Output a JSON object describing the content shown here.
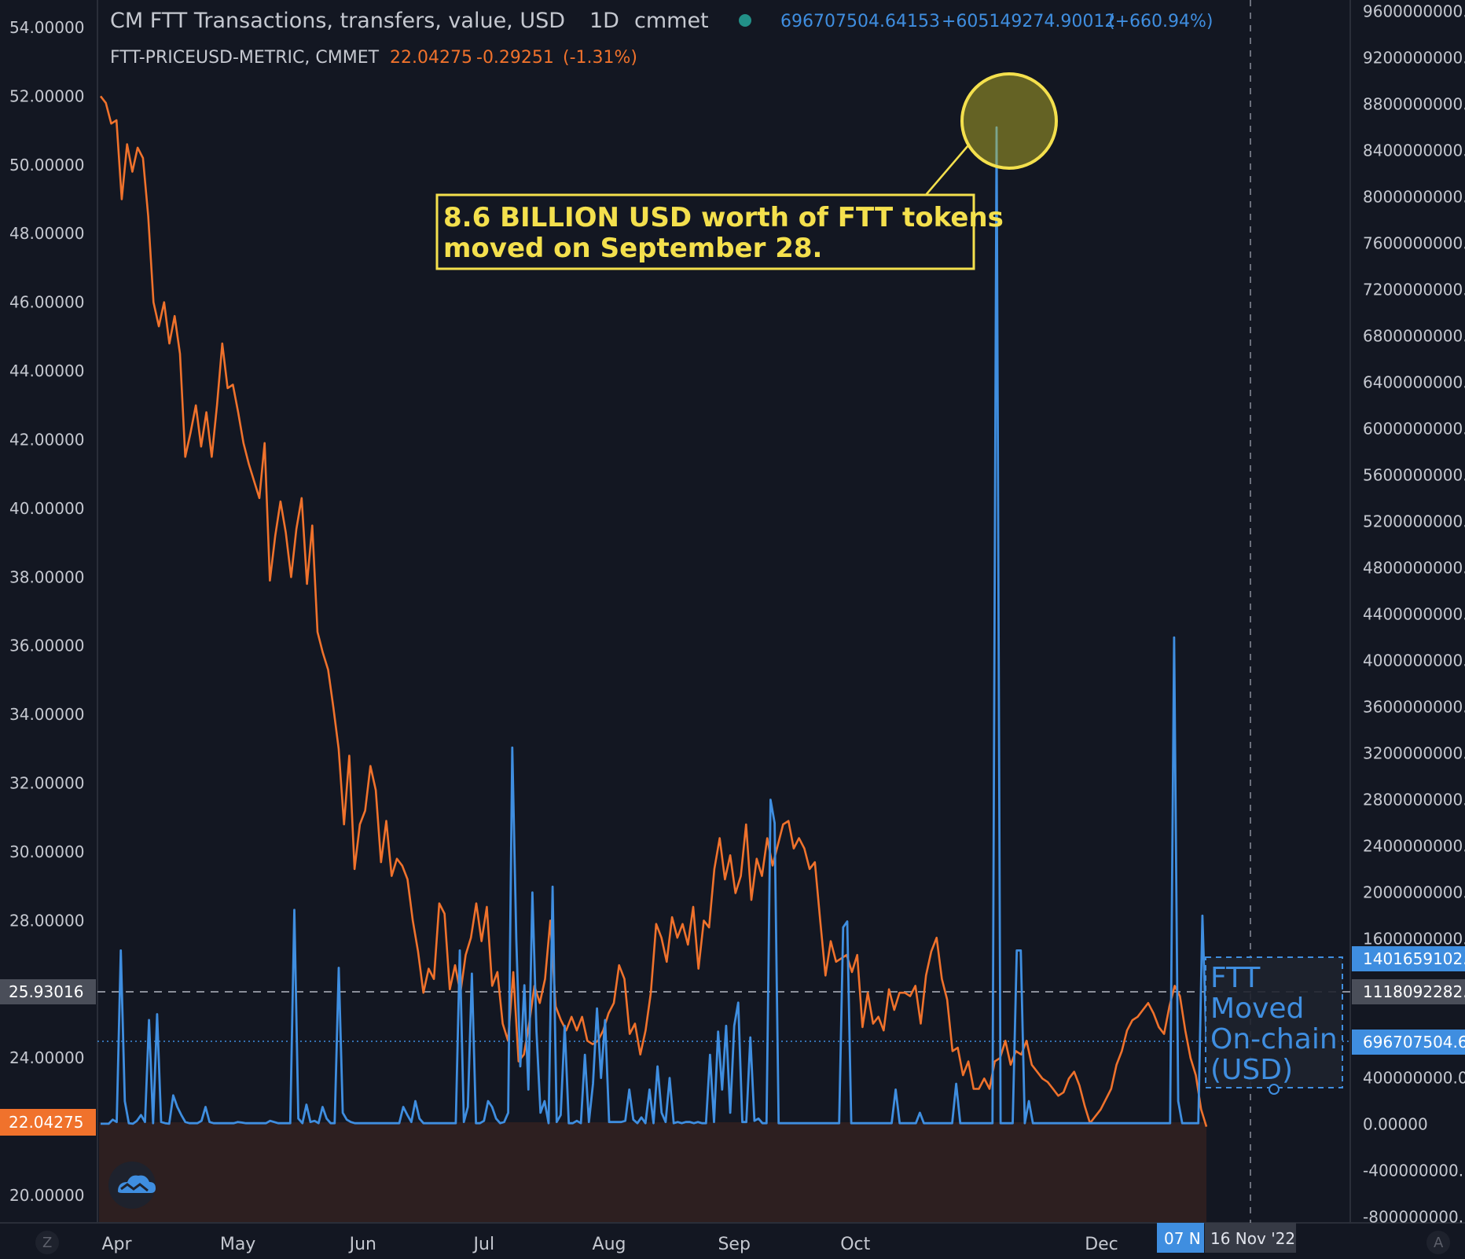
{
  "header": {
    "series1_title": "CM FTT Transactions, transfers, value, USD",
    "series1_interval": "1D",
    "series1_source": "cmmet",
    "series1_last": "696707504.64153",
    "series1_change": "+605149274.90012",
    "series1_change_pct": "(+660.94%)",
    "series2_title": "FTT-PRICEUSD-METRIC, CMMET",
    "series2_last": "22.04275",
    "series2_change": "-0.29251",
    "series2_change_pct": "(-1.31%)"
  },
  "annotation": {
    "line1": "8.6 BILLION USD worth of FTT tokens",
    "line2": "moved on September 28."
  },
  "box_label": [
    "FTT",
    "Moved",
    "On-chain",
    "(USD)"
  ],
  "price_tags": {
    "left_dashed": "25.93016",
    "left_last": "22.04275",
    "right_1": "1401659102.",
    "right_2": "1118092282.",
    "right_3": "696707504.6"
  },
  "crosshair_labels": {
    "x_highlight": "07 N",
    "x_date": "16 Nov '22"
  },
  "corner_labels": {
    "left": "Z",
    "right": "A"
  },
  "colors": {
    "background": "#131722",
    "transfers": "#3f8ee0",
    "price": "#f0722c",
    "annotation": "#f4e04d"
  },
  "chart_data": {
    "type": "line",
    "x_ticks": [
      "Apr",
      "May",
      "Jun",
      "Jul",
      "Aug",
      "Sep",
      "Oct",
      "Dec"
    ],
    "y_left_ticks": [
      "54.00000",
      "52.00000",
      "50.00000",
      "48.00000",
      "46.00000",
      "44.00000",
      "42.00000",
      "40.00000",
      "38.00000",
      "36.00000",
      "34.00000",
      "32.00000",
      "30.00000",
      "28.00000",
      "24.00000",
      "20.00000"
    ],
    "y_left_range": [
      19.2,
      54.8
    ],
    "y_right_ticks": [
      "9600000000.",
      "9200000000.",
      "8800000000.",
      "8400000000.",
      "8000000000.",
      "7600000000.",
      "7200000000.",
      "6800000000.",
      "6400000000.",
      "6000000000.",
      "5600000000.",
      "5200000000.",
      "4800000000.",
      "4400000000.",
      "4000000000.",
      "3600000000.",
      "3200000000.",
      "2800000000.",
      "2400000000.",
      "2000000000.",
      "1600000000.",
      "400000000.0",
      "0.00000",
      "-400000000.",
      "-800000000."
    ],
    "y_right_range": [
      -850000000,
      9700000000
    ],
    "grid": false,
    "series": [
      {
        "name": "CM FTT Transactions, transfers, value, USD",
        "axis": "right",
        "values": [
          5000000,
          5000000,
          5000000,
          40000000,
          20000000,
          1500000000,
          200000000,
          10000000,
          5000000,
          30000000,
          80000000,
          20000000,
          900000000,
          10000000,
          950000000,
          20000000,
          10000000,
          5000000,
          250000000,
          150000000,
          80000000,
          20000000,
          10000000,
          10000000,
          10000000,
          30000000,
          150000000,
          20000000,
          10000000,
          10000000,
          10000000,
          10000000,
          10000000,
          10000000,
          20000000,
          15000000,
          10000000,
          10000000,
          10000000,
          10000000,
          10000000,
          10000000,
          30000000,
          20000000,
          10000000,
          10000000,
          10000000,
          10000000,
          1850000000,
          50000000,
          10000000,
          170000000,
          20000000,
          30000000,
          10000000,
          150000000,
          50000000,
          10000000,
          10000000,
          1350000000,
          100000000,
          40000000,
          20000000,
          10000000,
          10000000,
          10000000,
          10000000,
          10000000,
          10000000,
          10000000,
          10000000,
          10000000,
          10000000,
          10000000,
          10000000,
          150000000,
          80000000,
          20000000,
          200000000,
          50000000,
          10000000,
          10000000,
          10000000,
          10000000,
          10000000,
          10000000,
          10000000,
          10000000,
          10000000,
          1500000000,
          20000000,
          150000000,
          1300000000,
          10000000,
          10000000,
          30000000,
          200000000,
          150000000,
          50000000,
          10000000,
          20000000,
          100000000,
          3250000000,
          1600000000,
          500000000,
          1200000000,
          300000000,
          2000000000,
          800000000,
          100000000,
          200000000,
          10000000,
          2050000000,
          20000000,
          80000000,
          850000000,
          10000000,
          10000000,
          30000000,
          10000000,
          600000000,
          20000000,
          350000000,
          1000000000,
          400000000,
          900000000,
          20000000,
          20000000,
          20000000,
          20000000,
          30000000,
          300000000,
          40000000,
          10000000,
          60000000,
          10000000,
          300000000,
          10000000,
          500000000,
          100000000,
          20000000,
          400000000,
          10000000,
          20000000,
          10000000,
          20000000,
          20000000,
          10000000,
          20000000,
          10000000,
          10000000,
          600000000,
          20000000,
          800000000,
          300000000,
          850000000,
          100000000,
          850000000,
          1050000000,
          20000000,
          20000000,
          750000000,
          30000000,
          50000000,
          10000000,
          10000000,
          2800000000,
          2600000000,
          10000000,
          10000000,
          10000000,
          10000000,
          10000000,
          10000000,
          10000000,
          10000000,
          10000000,
          10000000,
          10000000,
          10000000,
          10000000,
          10000000,
          10000000,
          10000000,
          1700000000,
          1750000000,
          10000000,
          10000000,
          10000000,
          10000000,
          10000000,
          10000000,
          10000000,
          10000000,
          10000000,
          10000000,
          10000000,
          300000000,
          10000000,
          10000000,
          10000000,
          10000000,
          10000000,
          100000000,
          10000000,
          10000000,
          10000000,
          10000000,
          10000000,
          10000000,
          10000000,
          10000000,
          350000000,
          10000000,
          10000000,
          10000000,
          10000000,
          10000000,
          10000000,
          10000000,
          10000000,
          10000000,
          8600000000,
          10000000,
          10000000,
          10000000,
          10000000,
          1500000000,
          1500000000,
          10000000,
          200000000,
          10000000,
          10000000,
          10000000,
          10000000,
          10000000,
          10000000,
          10000000,
          10000000,
          10000000,
          10000000,
          10000000,
          10000000,
          10000000,
          10000000,
          10000000,
          10000000,
          10000000,
          10000000,
          10000000,
          10000000,
          10000000,
          10000000,
          10000000,
          10000000,
          10000000,
          10000000,
          10000000,
          10000000,
          10000000,
          10000000,
          10000000,
          10000000,
          10000000,
          10000000,
          10000000,
          4200000000,
          200000000,
          10000000,
          10000000,
          10000000,
          10000000,
          10000000,
          1800000000,
          696707504
        ]
      },
      {
        "name": "FTT-PRICEUSD-METRIC, CMMET",
        "axis": "left",
        "values": [
          52.0,
          51.8,
          51.2,
          51.3,
          49.0,
          50.6,
          49.8,
          50.5,
          50.2,
          48.5,
          46.0,
          45.3,
          46.0,
          44.8,
          45.6,
          44.5,
          41.5,
          42.2,
          43.0,
          41.8,
          42.8,
          41.5,
          43.0,
          44.8,
          43.5,
          43.6,
          42.8,
          41.9,
          41.3,
          40.8,
          40.3,
          41.9,
          37.9,
          39.2,
          40.2,
          39.3,
          38.0,
          39.4,
          40.3,
          37.8,
          39.5,
          36.4,
          35.8,
          35.3,
          34.2,
          33.0,
          30.8,
          32.8,
          29.5,
          30.8,
          31.2,
          32.5,
          31.8,
          29.7,
          30.9,
          29.3,
          29.8,
          29.6,
          29.2,
          28.0,
          27.1,
          25.9,
          26.6,
          26.3,
          28.5,
          28.2,
          26.0,
          26.7,
          25.9,
          27.0,
          27.5,
          28.5,
          27.4,
          28.4,
          26.1,
          26.5,
          25.0,
          24.5,
          26.5,
          23.9,
          24.1,
          25.0,
          26.1,
          25.6,
          26.3,
          28.0,
          25.5,
          25.1,
          24.8,
          25.2,
          24.8,
          25.2,
          24.5,
          24.4,
          24.5,
          24.8,
          25.3,
          25.6,
          26.7,
          26.3,
          24.7,
          25.0,
          24.1,
          24.8,
          25.9,
          27.9,
          27.5,
          26.8,
          28.1,
          27.5,
          27.9,
          27.3,
          28.4,
          26.6,
          28.0,
          27.8,
          29.5,
          30.4,
          29.2,
          29.9,
          28.8,
          29.3,
          30.8,
          28.6,
          29.8,
          29.3,
          30.4,
          29.6,
          30.2,
          30.8,
          30.9,
          30.1,
          30.4,
          30.1,
          29.5,
          29.7,
          28.0,
          26.4,
          27.4,
          26.8,
          26.9,
          27.0,
          26.5,
          27.0,
          24.9,
          25.9,
          25.0,
          25.2,
          24.8,
          26.0,
          25.4,
          25.9,
          25.9,
          25.8,
          26.1,
          25.0,
          26.4,
          27.1,
          27.5,
          26.3,
          25.7,
          24.2,
          24.3,
          23.5,
          23.9,
          23.1,
          23.1,
          23.4,
          23.1,
          23.9,
          24.0,
          24.5,
          23.8,
          24.2,
          24.1,
          24.5,
          23.8,
          23.6,
          23.4,
          23.3,
          23.1,
          22.9,
          23.0,
          23.4,
          23.6,
          23.2,
          22.6,
          22.1,
          22.3,
          22.5,
          22.8,
          23.1,
          23.8,
          24.2,
          24.8,
          25.1,
          25.2,
          25.4,
          25.6,
          25.3,
          24.9,
          24.7,
          25.5,
          26.1,
          25.8,
          24.8,
          24.0,
          23.5,
          22.5,
          22.0
        ]
      }
    ]
  }
}
